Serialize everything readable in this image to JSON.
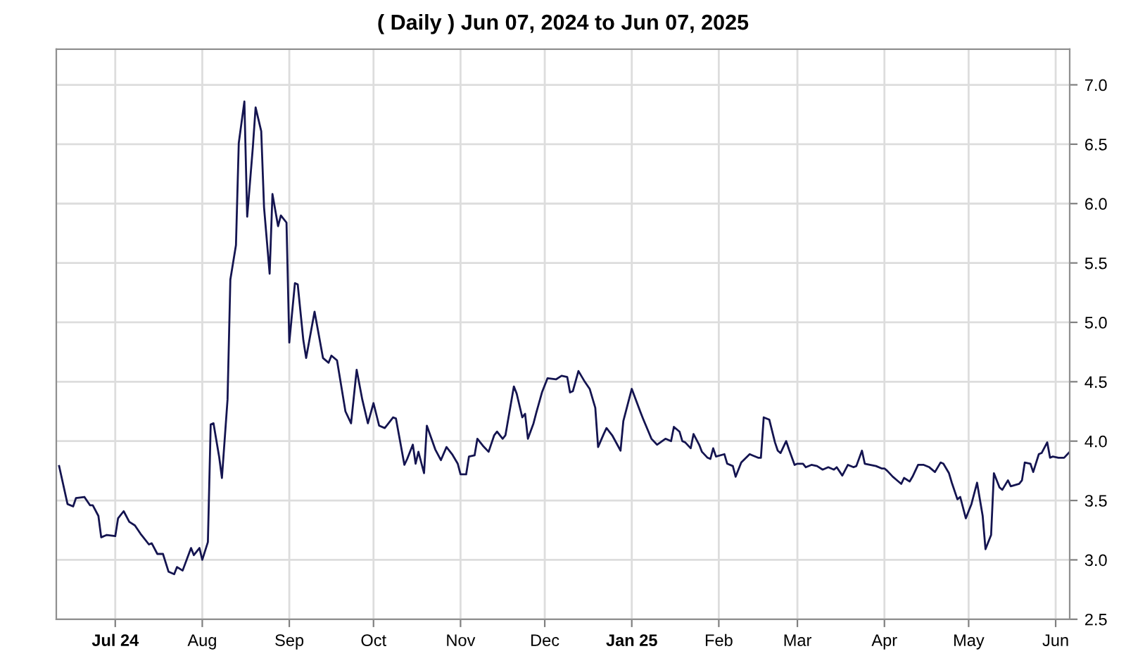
{
  "chart_data": {
    "type": "line",
    "title": "( Daily ) Jun 07, 2024 to Jun 07, 2025",
    "x": [
      "2024-06-11",
      "2024-06-14",
      "2024-06-16",
      "2024-06-17",
      "2024-06-20",
      "2024-06-22",
      "2024-06-23",
      "2024-06-25",
      "2024-06-26",
      "2024-06-28",
      "2024-07-01",
      "2024-07-02",
      "2024-07-04",
      "2024-07-06",
      "2024-07-08",
      "2024-07-10",
      "2024-07-13",
      "2024-07-14",
      "2024-07-16",
      "2024-07-18",
      "2024-07-20",
      "2024-07-22",
      "2024-07-23",
      "2024-07-25",
      "2024-07-28",
      "2024-07-29",
      "2024-07-31",
      "2024-08-01",
      "2024-08-03",
      "2024-08-04",
      "2024-08-05",
      "2024-08-07",
      "2024-08-08",
      "2024-08-10",
      "2024-08-11",
      "2024-08-13",
      "2024-08-14",
      "2024-08-16",
      "2024-08-17",
      "2024-08-19",
      "2024-08-20",
      "2024-08-22",
      "2024-08-23",
      "2024-08-25",
      "2024-08-26",
      "2024-08-28",
      "2024-08-29",
      "2024-08-31",
      "2024-09-01",
      "2024-09-03",
      "2024-09-04",
      "2024-09-06",
      "2024-09-07",
      "2024-09-10",
      "2024-09-13",
      "2024-09-15",
      "2024-09-16",
      "2024-09-18",
      "2024-09-21",
      "2024-09-23",
      "2024-09-25",
      "2024-09-27",
      "2024-09-29",
      "2024-10-01",
      "2024-10-03",
      "2024-10-05",
      "2024-10-06",
      "2024-10-08",
      "2024-10-09",
      "2024-10-12",
      "2024-10-13",
      "2024-10-15",
      "2024-10-16",
      "2024-10-17",
      "2024-10-19",
      "2024-10-20",
      "2024-10-23",
      "2024-10-25",
      "2024-10-27",
      "2024-10-29",
      "2024-10-31",
      "2024-11-01",
      "2024-11-03",
      "2024-11-04",
      "2024-11-06",
      "2024-11-07",
      "2024-11-09",
      "2024-11-11",
      "2024-11-13",
      "2024-11-14",
      "2024-11-16",
      "2024-11-17",
      "2024-11-20",
      "2024-11-21",
      "2024-11-23",
      "2024-11-24",
      "2024-11-25",
      "2024-11-27",
      "2024-11-28",
      "2024-11-30",
      "2024-12-02",
      "2024-12-05",
      "2024-12-07",
      "2024-12-09",
      "2024-12-10",
      "2024-12-11",
      "2024-12-13",
      "2024-12-15",
      "2024-12-17",
      "2024-12-19",
      "2024-12-20",
      "2024-12-22",
      "2024-12-23",
      "2024-12-25",
      "2024-12-28",
      "2024-12-29",
      "2025-01-01",
      "2025-01-04",
      "2025-01-05",
      "2025-01-08",
      "2025-01-10",
      "2025-01-13",
      "2025-01-15",
      "2025-01-16",
      "2025-01-18",
      "2025-01-19",
      "2025-01-20",
      "2025-01-22",
      "2025-01-23",
      "2025-01-25",
      "2025-01-26",
      "2025-01-28",
      "2025-01-29",
      "2025-01-30",
      "2025-01-31",
      "2025-02-03",
      "2025-02-04",
      "2025-02-06",
      "2025-02-07",
      "2025-02-09",
      "2025-02-12",
      "2025-02-13",
      "2025-02-15",
      "2025-02-16",
      "2025-02-17",
      "2025-02-19",
      "2025-02-21",
      "2025-02-22",
      "2025-02-23",
      "2025-02-25",
      "2025-02-26",
      "2025-02-28",
      "2025-03-01",
      "2025-03-03",
      "2025-03-04",
      "2025-03-06",
      "2025-03-08",
      "2025-03-10",
      "2025-03-12",
      "2025-03-14",
      "2025-03-15",
      "2025-03-17",
      "2025-03-19",
      "2025-03-21",
      "2025-03-22",
      "2025-03-24",
      "2025-03-25",
      "2025-03-29",
      "2025-03-31",
      "2025-04-01",
      "2025-04-02",
      "2025-04-04",
      "2025-04-05",
      "2025-04-07",
      "2025-04-08",
      "2025-04-10",
      "2025-04-11",
      "2025-04-13",
      "2025-04-15",
      "2025-04-17",
      "2025-04-19",
      "2025-04-21",
      "2025-04-22",
      "2025-04-24",
      "2025-04-25",
      "2025-04-27",
      "2025-04-28",
      "2025-04-30",
      "2025-05-01",
      "2025-05-02",
      "2025-05-04",
      "2025-05-06",
      "2025-05-07",
      "2025-05-09",
      "2025-05-10",
      "2025-05-12",
      "2025-05-13",
      "2025-05-15",
      "2025-05-16",
      "2025-05-19",
      "2025-05-20",
      "2025-05-21",
      "2025-05-23",
      "2025-05-24",
      "2025-05-26",
      "2025-05-27",
      "2025-05-29",
      "2025-05-30",
      "2025-05-31",
      "2025-06-02",
      "2025-06-04",
      "2025-06-06"
    ],
    "series": [
      {
        "color": "#141450",
        "values": [
          3.79,
          3.47,
          3.45,
          3.52,
          3.53,
          3.46,
          3.46,
          3.37,
          3.19,
          3.21,
          3.2,
          3.35,
          3.41,
          3.32,
          3.29,
          3.22,
          3.13,
          3.14,
          3.05,
          3.05,
          2.9,
          2.88,
          2.94,
          2.91,
          3.1,
          3.04,
          3.1,
          3.0,
          3.15,
          4.14,
          4.15,
          3.87,
          3.69,
          4.35,
          5.36,
          5.65,
          6.51,
          6.86,
          5.89,
          6.47,
          6.81,
          6.61,
          5.97,
          5.41,
          6.08,
          5.81,
          5.9,
          5.84,
          4.83,
          5.33,
          5.32,
          4.85,
          4.7,
          5.09,
          4.7,
          4.66,
          4.72,
          4.68,
          4.25,
          4.15,
          4.6,
          4.35,
          4.15,
          4.32,
          4.13,
          4.11,
          4.14,
          4.2,
          4.19,
          3.8,
          3.85,
          3.97,
          3.81,
          3.91,
          3.73,
          4.13,
          3.93,
          3.84,
          3.95,
          3.89,
          3.81,
          3.72,
          3.72,
          3.87,
          3.88,
          4.02,
          3.96,
          3.91,
          4.05,
          4.08,
          4.02,
          4.05,
          4.46,
          4.4,
          4.2,
          4.23,
          4.02,
          4.15,
          4.24,
          4.41,
          4.53,
          4.52,
          4.55,
          4.54,
          4.41,
          4.42,
          4.59,
          4.51,
          4.44,
          4.28,
          3.95,
          4.06,
          4.11,
          4.05,
          3.92,
          4.17,
          4.44,
          4.25,
          4.19,
          4.02,
          3.97,
          4.02,
          4.0,
          4.12,
          4.08,
          4.0,
          3.99,
          3.94,
          4.06,
          3.97,
          3.91,
          3.86,
          3.85,
          3.94,
          3.87,
          3.89,
          3.81,
          3.79,
          3.7,
          3.82,
          3.89,
          3.88,
          3.86,
          3.86,
          4.2,
          4.18,
          3.99,
          3.92,
          3.9,
          4.0,
          3.93,
          3.8,
          3.81,
          3.81,
          3.78,
          3.8,
          3.79,
          3.76,
          3.78,
          3.76,
          3.78,
          3.71,
          3.8,
          3.78,
          3.79,
          3.92,
          3.81,
          3.79,
          3.77,
          3.77,
          3.75,
          3.7,
          3.68,
          3.64,
          3.69,
          3.66,
          3.7,
          3.8,
          3.8,
          3.78,
          3.74,
          3.82,
          3.81,
          3.73,
          3.65,
          3.51,
          3.53,
          3.35,
          3.41,
          3.47,
          3.65,
          3.37,
          3.09,
          3.21,
          3.73,
          3.61,
          3.59,
          3.67,
          3.62,
          3.64,
          3.67,
          3.82,
          3.81,
          3.74,
          3.89,
          3.9,
          3.99,
          3.86,
          3.87,
          3.86,
          3.86,
          3.91
        ]
      }
    ],
    "xlim": [
      "2024-06-10",
      "2025-06-06"
    ],
    "xticks": [
      {
        "value": "2024-07-01",
        "label": "Jul 24"
      },
      {
        "value": "2024-08-01",
        "label": "Aug"
      },
      {
        "value": "2024-09-01",
        "label": "Sep"
      },
      {
        "value": "2024-10-01",
        "label": "Oct"
      },
      {
        "value": "2024-11-01",
        "label": "Nov"
      },
      {
        "value": "2024-12-01",
        "label": "Dec"
      },
      {
        "value": "2025-01-01",
        "label": "Jan 25"
      },
      {
        "value": "2025-02-01",
        "label": "Feb"
      },
      {
        "value": "2025-03-01",
        "label": "Mar"
      },
      {
        "value": "2025-04-01",
        "label": "Apr"
      },
      {
        "value": "2025-05-01",
        "label": "May"
      },
      {
        "value": "2025-06-01",
        "label": "Jun"
      }
    ],
    "ylim": [
      2.5,
      7.3
    ],
    "yticks": [
      {
        "value": 2.5,
        "label": "2.5"
      },
      {
        "value": 3,
        "label": "3.0"
      },
      {
        "value": 3.5,
        "label": "3.5"
      },
      {
        "value": 4,
        "label": "4.0"
      },
      {
        "value": 4.5,
        "label": "4.5"
      },
      {
        "value": 5,
        "label": "5.0"
      },
      {
        "value": 5.5,
        "label": "5.5"
      },
      {
        "value": 6,
        "label": "6.0"
      },
      {
        "value": 6.5,
        "label": "6.5"
      },
      {
        "value": 7,
        "label": "7.0"
      }
    ],
    "grid": true,
    "legend": false,
    "marker": "none",
    "line_style": "solid"
  }
}
